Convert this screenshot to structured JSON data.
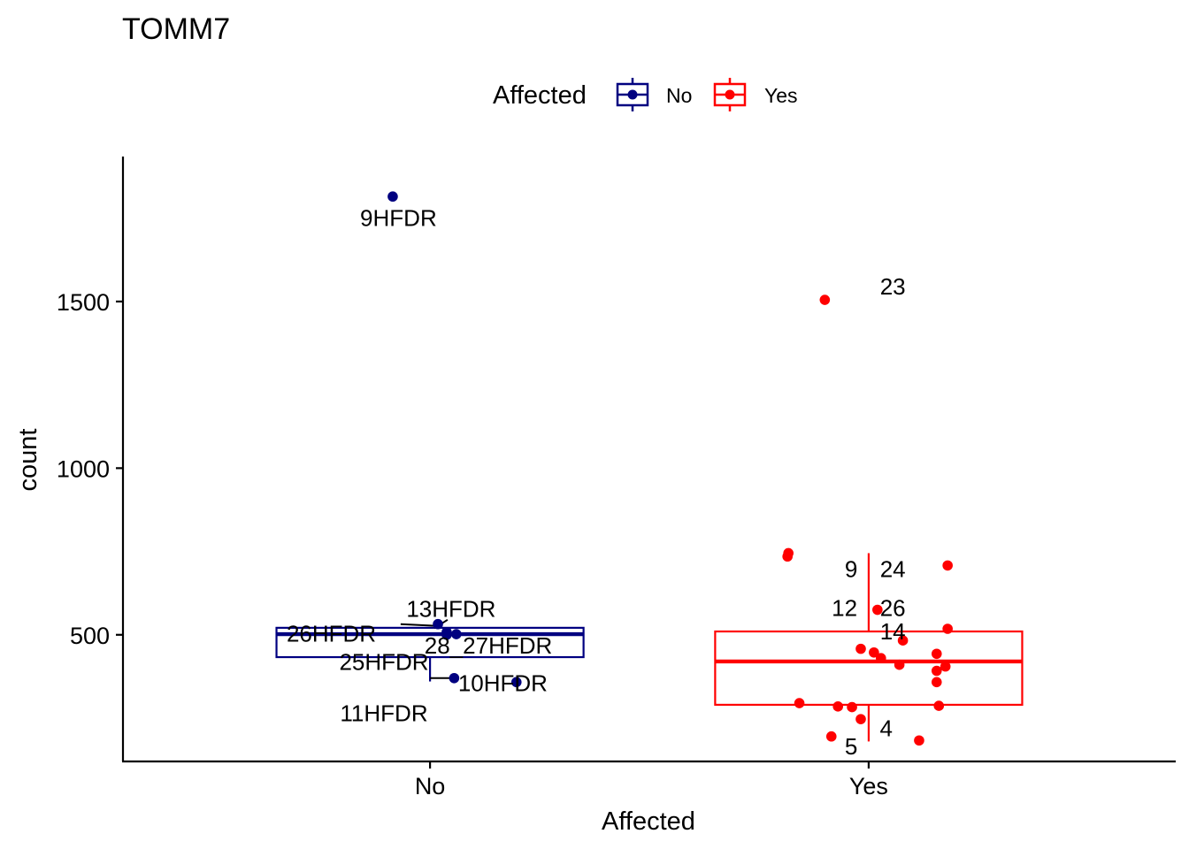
{
  "chart_data": {
    "type": "boxplot",
    "title": "TOMM7",
    "xlabel": "Affected",
    "ylabel": "count",
    "categories": [
      "No",
      "Yes"
    ],
    "ylim": [
      120,
      1935
    ],
    "yticks": [
      500,
      1000,
      1500
    ],
    "grid": false,
    "legend": {
      "title": "Affected",
      "position": "top",
      "entries": [
        "No",
        "Yes"
      ]
    },
    "colors": {
      "No": "#000080",
      "Yes": "#FF0000"
    },
    "boxes": [
      {
        "group": "No",
        "whisker_low": 360,
        "q1": 433,
        "median": 502,
        "q3": 521,
        "whisker_high": 521
      },
      {
        "group": "Yes",
        "whisker_low": 180,
        "q1": 290,
        "median": 420,
        "q3": 510,
        "whisker_high": 745
      }
    ],
    "points": [
      {
        "group": "No",
        "dx": -0.085,
        "y": 1815
      },
      {
        "group": "No",
        "dx": 0.018,
        "y": 532
      },
      {
        "group": "No",
        "dx": 0.038,
        "y": 508
      },
      {
        "group": "No",
        "dx": 0.06,
        "y": 502
      },
      {
        "group": "No",
        "dx": 0.038,
        "y": 500
      },
      {
        "group": "No",
        "dx": 0.055,
        "y": 370
      },
      {
        "group": "No",
        "dx": 0.197,
        "y": 358
      },
      {
        "group": "Yes",
        "dx": -0.1,
        "y": 1505
      },
      {
        "group": "Yes",
        "dx": -0.183,
        "y": 745
      },
      {
        "group": "Yes",
        "dx": -0.185,
        "y": 735
      },
      {
        "group": "Yes",
        "dx": 0.18,
        "y": 708
      },
      {
        "group": "Yes",
        "dx": 0.02,
        "y": 575
      },
      {
        "group": "Yes",
        "dx": 0.18,
        "y": 518
      },
      {
        "group": "Yes",
        "dx": 0.078,
        "y": 483
      },
      {
        "group": "Yes",
        "dx": -0.018,
        "y": 458
      },
      {
        "group": "Yes",
        "dx": 0.012,
        "y": 447
      },
      {
        "group": "Yes",
        "dx": 0.155,
        "y": 443
      },
      {
        "group": "Yes",
        "dx": 0.028,
        "y": 430
      },
      {
        "group": "Yes",
        "dx": 0.07,
        "y": 410
      },
      {
        "group": "Yes",
        "dx": 0.175,
        "y": 405
      },
      {
        "group": "Yes",
        "dx": 0.155,
        "y": 392
      },
      {
        "group": "Yes",
        "dx": 0.155,
        "y": 358
      },
      {
        "group": "Yes",
        "dx": -0.158,
        "y": 295
      },
      {
        "group": "Yes",
        "dx": 0.16,
        "y": 287
      },
      {
        "group": "Yes",
        "dx": -0.07,
        "y": 285
      },
      {
        "group": "Yes",
        "dx": -0.038,
        "y": 283
      },
      {
        "group": "Yes",
        "dx": -0.018,
        "y": 247
      },
      {
        "group": "Yes",
        "dx": -0.085,
        "y": 195
      },
      {
        "group": "Yes",
        "dx": 0.115,
        "y": 183
      }
    ],
    "annotations": [
      {
        "text": "9HFDR",
        "dx": -0.072,
        "y": 1750
      },
      {
        "text": "13HFDR",
        "dx": 0.048,
        "y": 578
      },
      {
        "text": "26HFDR",
        "dx": -0.225,
        "y": 503
      },
      {
        "text": "28_27HFDR",
        "dx": 0.133,
        "y": 468
      },
      {
        "text": "25HFDR",
        "dx": -0.105,
        "y": 418
      },
      {
        "text": "10HFDR",
        "dx": 0.166,
        "y": 355
      },
      {
        "text": "11HFDR",
        "dx": -0.105,
        "y": 265
      },
      {
        "text": "23",
        "dx": 0.055,
        "y": 1545
      },
      {
        "text": "9",
        "dx": -0.04,
        "y": 697
      },
      {
        "text": "24",
        "dx": 0.055,
        "y": 697
      },
      {
        "text": "12",
        "dx": -0.055,
        "y": 580
      },
      {
        "text": "26",
        "dx": 0.055,
        "y": 580
      },
      {
        "text": "14",
        "dx": 0.055,
        "y": 510
      },
      {
        "text": "4",
        "dx": 0.04,
        "y": 220
      },
      {
        "text": "5",
        "dx": -0.04,
        "y": 165
      }
    ],
    "connectors": [
      {
        "dx1": -0.067,
        "y1": 532,
        "dx2": 0.012,
        "y2": 527
      },
      {
        "dx1": 0.01,
        "y1": 520,
        "dx2": 0.04,
        "y2": 545
      },
      {
        "dx1": 0.0,
        "y1": 370,
        "dx2": 0.05,
        "y2": 370
      }
    ]
  }
}
